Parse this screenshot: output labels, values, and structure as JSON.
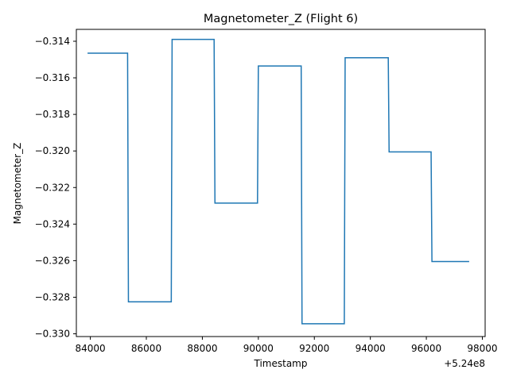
{
  "chart_data": {
    "type": "line",
    "title": "Magnetometer_Z (Flight 6)",
    "xlabel": "Timestamp",
    "ylabel": "Magnetometer_Z",
    "x_offset_label": "+5.24e8",
    "xlim": [
      83500,
      98100
    ],
    "ylim": [
      -0.33015,
      -0.31335
    ],
    "x_ticks": [
      84000,
      86000,
      88000,
      90000,
      92000,
      94000,
      96000,
      98000
    ],
    "x_tick_labels": [
      "84000",
      "86000",
      "88000",
      "90000",
      "92000",
      "94000",
      "96000",
      "98000"
    ],
    "y_ticks": [
      -0.33,
      -0.328,
      -0.326,
      -0.324,
      -0.322,
      -0.32,
      -0.318,
      -0.316,
      -0.314
    ],
    "y_tick_labels": [
      "−0.330",
      "−0.328",
      "−0.326",
      "−0.324",
      "−0.322",
      "−0.320",
      "−0.318",
      "−0.316",
      "−0.314"
    ],
    "grid": false,
    "line_color": "#1f77b4",
    "series": [
      {
        "x": [
          83900,
          85330,
          85360,
          86890,
          86920,
          88420,
          88450,
          89970,
          90000,
          91530,
          91560,
          93070,
          93100,
          94640,
          94670,
          96170,
          96200,
          97530
        ],
        "values": [
          -0.31465,
          -0.31465,
          -0.32825,
          -0.32825,
          -0.3139,
          -0.3139,
          -0.32285,
          -0.32285,
          -0.31535,
          -0.31535,
          -0.32945,
          -0.32945,
          -0.3149,
          -0.3149,
          -0.32005,
          -0.32005,
          -0.32605,
          -0.32605
        ]
      }
    ]
  }
}
